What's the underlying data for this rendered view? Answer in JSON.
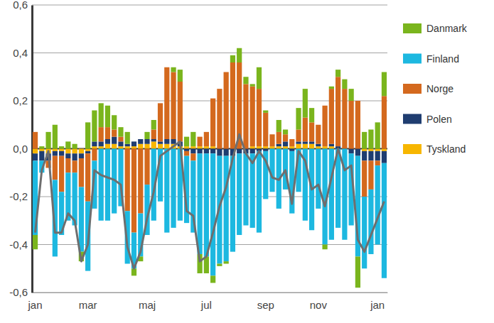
{
  "chart_data": {
    "type": "bar",
    "stacked": true,
    "grid": true,
    "legend": "right",
    "categories": [
      "jan",
      null,
      null,
      null,
      null,
      null,
      null,
      null,
      "mar",
      null,
      null,
      null,
      null,
      null,
      null,
      null,
      null,
      "maj",
      null,
      null,
      null,
      null,
      null,
      null,
      null,
      null,
      "jul",
      null,
      null,
      null,
      null,
      null,
      null,
      null,
      null,
      "sep",
      null,
      null,
      null,
      null,
      null,
      null,
      null,
      "nov",
      null,
      null,
      null,
      null,
      null,
      null,
      null,
      null,
      "jan",
      null
    ],
    "ylim": [
      -0.6,
      0.6
    ],
    "yticks": [
      {
        "value": -0.6,
        "label": "-0,6"
      },
      {
        "value": -0.4,
        "label": "-0,4"
      },
      {
        "value": -0.2,
        "label": "-0,2"
      },
      {
        "value": 0,
        "label": "0,0"
      },
      {
        "value": 0.2,
        "label": "0,2"
      },
      {
        "value": 0.4,
        "label": "0,4"
      },
      {
        "value": 0.6,
        "label": "0,6"
      }
    ],
    "series": [
      {
        "name": "Danmark",
        "color": "#7ab51d",
        "values": [
          -0.06,
          0.01,
          0.07,
          0.1,
          0.01,
          0.03,
          0.02,
          -0.04,
          0.11,
          0.13,
          0.1,
          0.09,
          0.06,
          0.04,
          0.05,
          -0.03,
          -0.02,
          0.03,
          0.04,
          0.0,
          0.0,
          0.02,
          0.05,
          0.04,
          0.06,
          -0.08,
          -0.07,
          -0.03,
          -0.01,
          -0.01,
          0.03,
          0.06,
          0.03,
          0.01,
          0.09,
          0.01,
          0.0,
          0.05,
          0.02,
          0.0,
          0.09,
          0.12,
          0.06,
          0.0,
          -0.02,
          0.01,
          0.03,
          0.04,
          0.05,
          -0.13,
          0.07,
          0.08,
          0.11,
          0.1
        ]
      },
      {
        "name": "Finland",
        "color": "#1db8e0",
        "values": [
          -0.31,
          -0.05,
          0.0,
          -0.32,
          -0.18,
          -0.2,
          -0.22,
          -0.27,
          -0.29,
          -0.2,
          -0.3,
          -0.3,
          -0.27,
          -0.24,
          -0.22,
          -0.15,
          -0.18,
          -0.21,
          -0.3,
          -0.22,
          -0.35,
          -0.33,
          -0.3,
          -0.28,
          -0.3,
          -0.42,
          -0.43,
          -0.51,
          -0.45,
          -0.44,
          -0.4,
          -0.34,
          -0.3,
          -0.31,
          -0.34,
          -0.2,
          -0.18,
          -0.25,
          -0.17,
          -0.26,
          -0.18,
          -0.3,
          -0.34,
          -0.25,
          -0.4,
          -0.38,
          -0.33,
          -0.38,
          -0.3,
          -0.42,
          -0.3,
          -0.27,
          -0.33,
          -0.48
        ]
      },
      {
        "name": "Norge",
        "color": "#d4691e",
        "values": [
          0.07,
          0.0,
          -0.03,
          -0.1,
          -0.15,
          -0.06,
          -0.05,
          -0.12,
          -0.2,
          -0.05,
          0.06,
          0.05,
          0.03,
          0.02,
          -0.26,
          -0.35,
          -0.27,
          -0.15,
          0.04,
          0.16,
          0.3,
          0.28,
          0.25,
          -0.02,
          -0.03,
          0.04,
          0.06,
          0.2,
          0.25,
          0.32,
          0.36,
          0.36,
          0.27,
          0.25,
          0.24,
          0.14,
          0.05,
          0.05,
          0.03,
          0.03,
          0.05,
          0.1,
          0.08,
          0.08,
          0.17,
          0.23,
          0.29,
          0.25,
          0.2,
          0.2,
          -0.15,
          -0.12,
          -0.02,
          0.22
        ]
      },
      {
        "name": "Polen",
        "color": "#1f3d70",
        "values": [
          -0.03,
          -0.04,
          -0.03,
          -0.02,
          -0.02,
          -0.02,
          -0.03,
          -0.02,
          -0.01,
          0.02,
          0.02,
          0.02,
          0.03,
          0.02,
          0.01,
          0.02,
          0.02,
          0.02,
          0.01,
          0.01,
          0.02,
          0.02,
          0.02,
          -0.01,
          -0.02,
          -0.02,
          -0.02,
          -0.02,
          -0.03,
          -0.03,
          -0.03,
          -0.02,
          -0.02,
          -0.02,
          -0.01,
          -0.01,
          0.0,
          0.01,
          0.02,
          -0.01,
          0.01,
          0.01,
          0.01,
          0.01,
          0.0,
          0.01,
          0.01,
          0.0,
          -0.02,
          -0.03,
          -0.04,
          -0.04,
          -0.04,
          -0.05
        ]
      },
      {
        "name": "Tyskland",
        "color": "#f7b600",
        "values": [
          -0.02,
          -0.01,
          -0.02,
          -0.01,
          -0.01,
          -0.02,
          -0.02,
          -0.02,
          -0.01,
          0.01,
          0.01,
          0.02,
          0.02,
          0.01,
          0.01,
          0.01,
          0.02,
          0.02,
          0.03,
          0.02,
          0.02,
          0.02,
          0.01,
          0.01,
          0.01,
          0.01,
          0.01,
          0.01,
          0.0,
          0.0,
          0.0,
          0.0,
          0.0,
          0.01,
          0.01,
          0.01,
          0.01,
          0.01,
          0.01,
          0.01,
          0.02,
          0.02,
          0.02,
          0.01,
          0.01,
          0.01,
          0.0,
          0.0,
          0.0,
          0.0,
          -0.01,
          -0.01,
          -0.01,
          -0.01
        ]
      },
      {
        "type": "line",
        "color": "#6e6e6e",
        "values": [
          -0.35,
          -0.09,
          -0.01,
          -0.35,
          -0.35,
          -0.27,
          -0.3,
          -0.47,
          -0.4,
          -0.09,
          -0.11,
          -0.12,
          -0.13,
          -0.15,
          -0.41,
          -0.5,
          -0.43,
          -0.29,
          -0.18,
          -0.03,
          -0.01,
          0.01,
          0.03,
          -0.26,
          -0.28,
          -0.47,
          -0.45,
          -0.35,
          -0.24,
          -0.16,
          -0.04,
          0.06,
          -0.02,
          -0.06,
          -0.01,
          -0.05,
          -0.12,
          -0.13,
          -0.09,
          -0.23,
          -0.01,
          -0.05,
          -0.17,
          -0.15,
          -0.24,
          -0.12,
          0.0,
          -0.09,
          -0.07,
          -0.38,
          -0.43,
          -0.36,
          -0.29,
          -0.22
        ]
      }
    ]
  }
}
